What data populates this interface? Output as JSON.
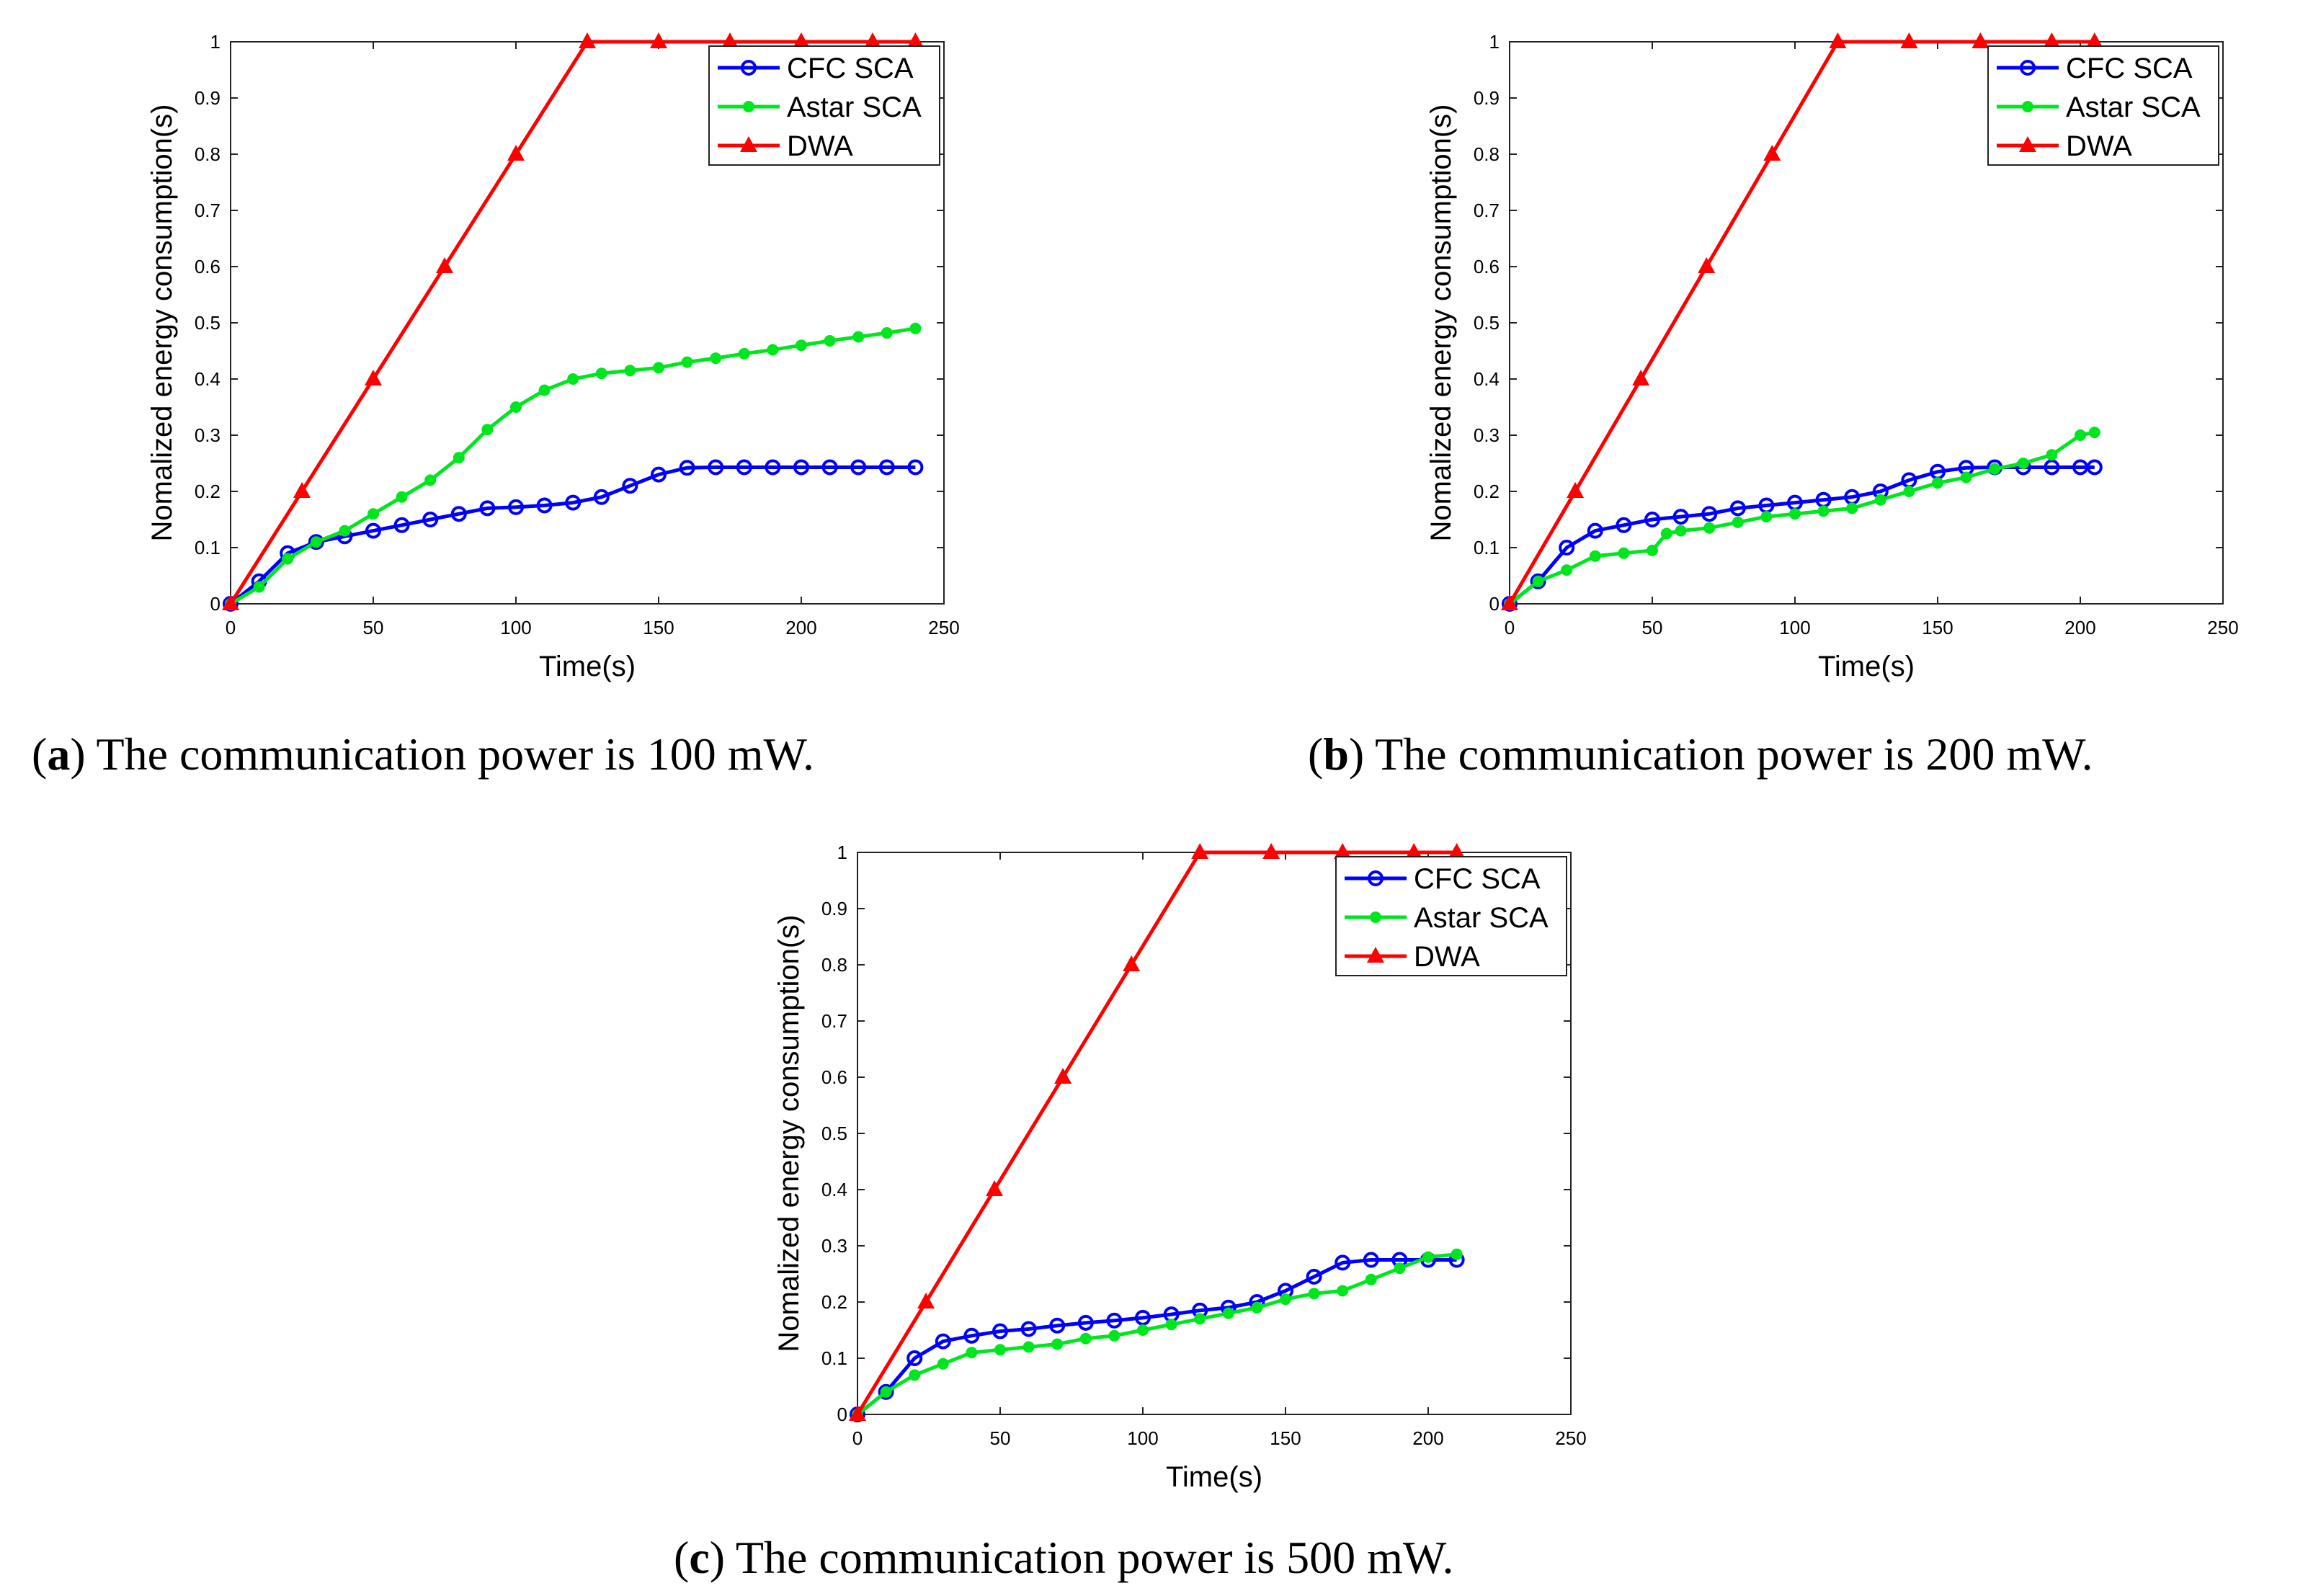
{
  "chart_data": [
    {
      "type": "line",
      "panel_letter": "a",
      "caption": "The communication power is 100 mW.",
      "xlabel": "Time(s)",
      "ylabel": "Nomalized energy consumption(s)",
      "xlim": [
        0,
        250
      ],
      "ylim": [
        0,
        1
      ],
      "xticks": [
        "0",
        "50",
        "100",
        "150",
        "200",
        "250"
      ],
      "yticks": [
        "0",
        "0.1",
        "0.2",
        "0.3",
        "0.4",
        "0.5",
        "0.6",
        "0.7",
        "0.8",
        "0.9",
        "1"
      ],
      "legend_position": "top-right",
      "series": [
        {
          "name": "CFC SCA",
          "color": "#0000ff",
          "marker": "circle",
          "x": [
            0,
            10,
            20,
            30,
            40,
            50,
            60,
            70,
            80,
            90,
            100,
            110,
            120,
            130,
            140,
            150,
            160,
            170,
            180,
            190,
            200,
            210,
            220,
            230,
            240
          ],
          "y": [
            0,
            0.04,
            0.09,
            0.11,
            0.12,
            0.13,
            0.14,
            0.15,
            0.16,
            0.17,
            0.172,
            0.175,
            0.18,
            0.19,
            0.21,
            0.23,
            0.242,
            0.243,
            0.243,
            0.243,
            0.243,
            0.243,
            0.243,
            0.243,
            0.243
          ]
        },
        {
          "name": "Astar SCA",
          "color": "#00e61e",
          "marker": "dot",
          "x": [
            0,
            10,
            20,
            30,
            40,
            50,
            60,
            70,
            80,
            90,
            100,
            110,
            120,
            130,
            140,
            150,
            160,
            170,
            180,
            190,
            200,
            210,
            220,
            230,
            240
          ],
          "y": [
            0,
            0.03,
            0.08,
            0.11,
            0.13,
            0.16,
            0.19,
            0.22,
            0.26,
            0.31,
            0.35,
            0.38,
            0.4,
            0.41,
            0.415,
            0.42,
            0.43,
            0.437,
            0.445,
            0.452,
            0.46,
            0.468,
            0.475,
            0.482,
            0.49
          ]
        },
        {
          "name": "DWA",
          "color": "#ff0000",
          "marker": "triangle",
          "x": [
            0,
            25,
            50,
            75,
            100,
            125,
            150,
            175,
            200,
            225,
            240
          ],
          "y": [
            0,
            0.2,
            0.4,
            0.6,
            0.8,
            1,
            1,
            1,
            1,
            1,
            1
          ]
        }
      ]
    },
    {
      "type": "line",
      "panel_letter": "b",
      "caption": "The communication power is 200 mW.",
      "xlabel": "Time(s)",
      "ylabel": "Nomalized energy consumption(s)",
      "xlim": [
        0,
        250
      ],
      "ylim": [
        0,
        1
      ],
      "xticks": [
        "0",
        "50",
        "100",
        "150",
        "200",
        "250"
      ],
      "yticks": [
        "0",
        "0.1",
        "0.2",
        "0.3",
        "0.4",
        "0.5",
        "0.6",
        "0.7",
        "0.8",
        "0.9",
        "1"
      ],
      "legend_position": "top-right",
      "series": [
        {
          "name": "CFC SCA",
          "color": "#0000ff",
          "marker": "circle",
          "x": [
            0,
            10,
            20,
            30,
            40,
            50,
            60,
            70,
            80,
            90,
            100,
            110,
            120,
            130,
            140,
            150,
            160,
            170,
            180,
            190,
            200,
            205
          ],
          "y": [
            0,
            0.04,
            0.1,
            0.13,
            0.14,
            0.15,
            0.155,
            0.16,
            0.17,
            0.175,
            0.18,
            0.185,
            0.19,
            0.2,
            0.22,
            0.235,
            0.242,
            0.243,
            0.243,
            0.243,
            0.243,
            0.243
          ]
        },
        {
          "name": "Astar SCA",
          "color": "#00e61e",
          "marker": "dot",
          "x": [
            0,
            10,
            20,
            30,
            40,
            50,
            55,
            60,
            70,
            80,
            90,
            100,
            110,
            120,
            130,
            140,
            150,
            160,
            170,
            180,
            190,
            200,
            205
          ],
          "y": [
            0,
            0.04,
            0.06,
            0.085,
            0.09,
            0.095,
            0.125,
            0.13,
            0.135,
            0.145,
            0.155,
            0.16,
            0.165,
            0.17,
            0.185,
            0.2,
            0.215,
            0.225,
            0.24,
            0.25,
            0.265,
            0.3,
            0.305
          ]
        },
        {
          "name": "DWA",
          "color": "#ff0000",
          "marker": "triangle",
          "x": [
            0,
            23,
            46,
            69,
            92,
            115,
            140,
            165,
            190,
            205
          ],
          "y": [
            0,
            0.2,
            0.4,
            0.6,
            0.8,
            1,
            1,
            1,
            1,
            1
          ]
        }
      ]
    },
    {
      "type": "line",
      "panel_letter": "c",
      "caption": "The communication power is 500 mW.",
      "xlabel": "Time(s)",
      "ylabel": "Nomalized energy consumption(s)",
      "xlim": [
        0,
        250
      ],
      "ylim": [
        0,
        1
      ],
      "xticks": [
        "0",
        "50",
        "100",
        "150",
        "200",
        "250"
      ],
      "yticks": [
        "0",
        "0.1",
        "0.2",
        "0.3",
        "0.4",
        "0.5",
        "0.6",
        "0.7",
        "0.8",
        "0.9",
        "1"
      ],
      "legend_position": "top-right",
      "series": [
        {
          "name": "CFC SCA",
          "color": "#0000ff",
          "marker": "circle",
          "x": [
            0,
            10,
            20,
            30,
            40,
            50,
            60,
            70,
            80,
            90,
            100,
            110,
            120,
            130,
            140,
            150,
            160,
            170,
            180,
            190,
            200,
            210
          ],
          "y": [
            0,
            0.04,
            0.1,
            0.13,
            0.14,
            0.148,
            0.152,
            0.158,
            0.163,
            0.167,
            0.172,
            0.178,
            0.185,
            0.19,
            0.2,
            0.22,
            0.245,
            0.27,
            0.275,
            0.275,
            0.275,
            0.275
          ]
        },
        {
          "name": "Astar SCA",
          "color": "#00e61e",
          "marker": "dot",
          "x": [
            0,
            10,
            20,
            30,
            40,
            50,
            60,
            70,
            80,
            90,
            100,
            110,
            120,
            130,
            140,
            150,
            160,
            170,
            180,
            190,
            200,
            210
          ],
          "y": [
            0,
            0.04,
            0.07,
            0.09,
            0.11,
            0.115,
            0.12,
            0.125,
            0.135,
            0.14,
            0.15,
            0.16,
            0.17,
            0.18,
            0.19,
            0.205,
            0.215,
            0.22,
            0.24,
            0.26,
            0.28,
            0.285
          ]
        },
        {
          "name": "DWA",
          "color": "#ff0000",
          "marker": "triangle",
          "x": [
            0,
            24,
            48,
            72,
            96,
            120,
            145,
            170,
            195,
            210
          ],
          "y": [
            0,
            0.2,
            0.4,
            0.6,
            0.8,
            1,
            1,
            1,
            1,
            1
          ]
        }
      ]
    }
  ]
}
